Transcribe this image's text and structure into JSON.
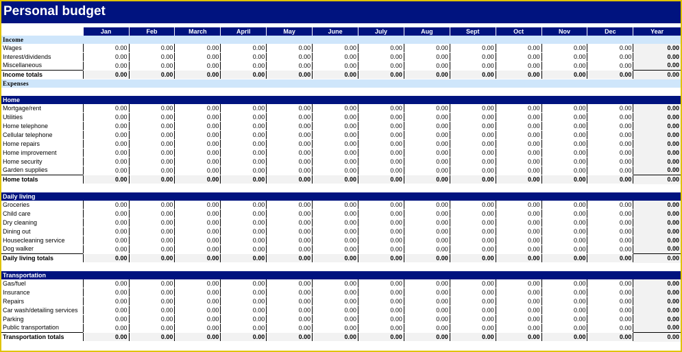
{
  "title": "Personal budget",
  "months": [
    "Jan",
    "Feb",
    "March",
    "April",
    "May",
    "June",
    "July",
    "Aug",
    "Sept",
    "Oct",
    "Nov",
    "Dec",
    "Year"
  ],
  "sections": [
    {
      "id": "income",
      "header": "Income",
      "style": "light",
      "items": [
        "Wages",
        "Interest/dividends",
        "Miscellaneous"
      ],
      "totals_label": "Income totals"
    },
    {
      "id": "expenses-header",
      "header": "Expenses",
      "style": "light",
      "items": [],
      "totals_label": null
    },
    {
      "id": "home",
      "header": "Home",
      "style": "dark",
      "items": [
        "Mortgage/rent",
        "Utilities",
        "Home telephone",
        "Cellular telephone",
        "Home repairs",
        "Home improvement",
        "Home security",
        "Garden supplies"
      ],
      "totals_label": "Home totals"
    },
    {
      "id": "daily-living",
      "header": "Daily living",
      "style": "dark",
      "items": [
        "Groceries",
        "Child care",
        "Dry cleaning",
        "Dining out",
        "Housecleaning service",
        "Dog walker"
      ],
      "totals_label": "Daily living totals"
    },
    {
      "id": "transportation",
      "header": "Transportation",
      "style": "dark",
      "items": [
        "Gas/fuel",
        "Insurance",
        "Repairs",
        "Car wash/detailing services",
        "Parking",
        "Public transportation"
      ],
      "totals_label": "Transportation totals"
    }
  ],
  "cell_value": "0.00"
}
